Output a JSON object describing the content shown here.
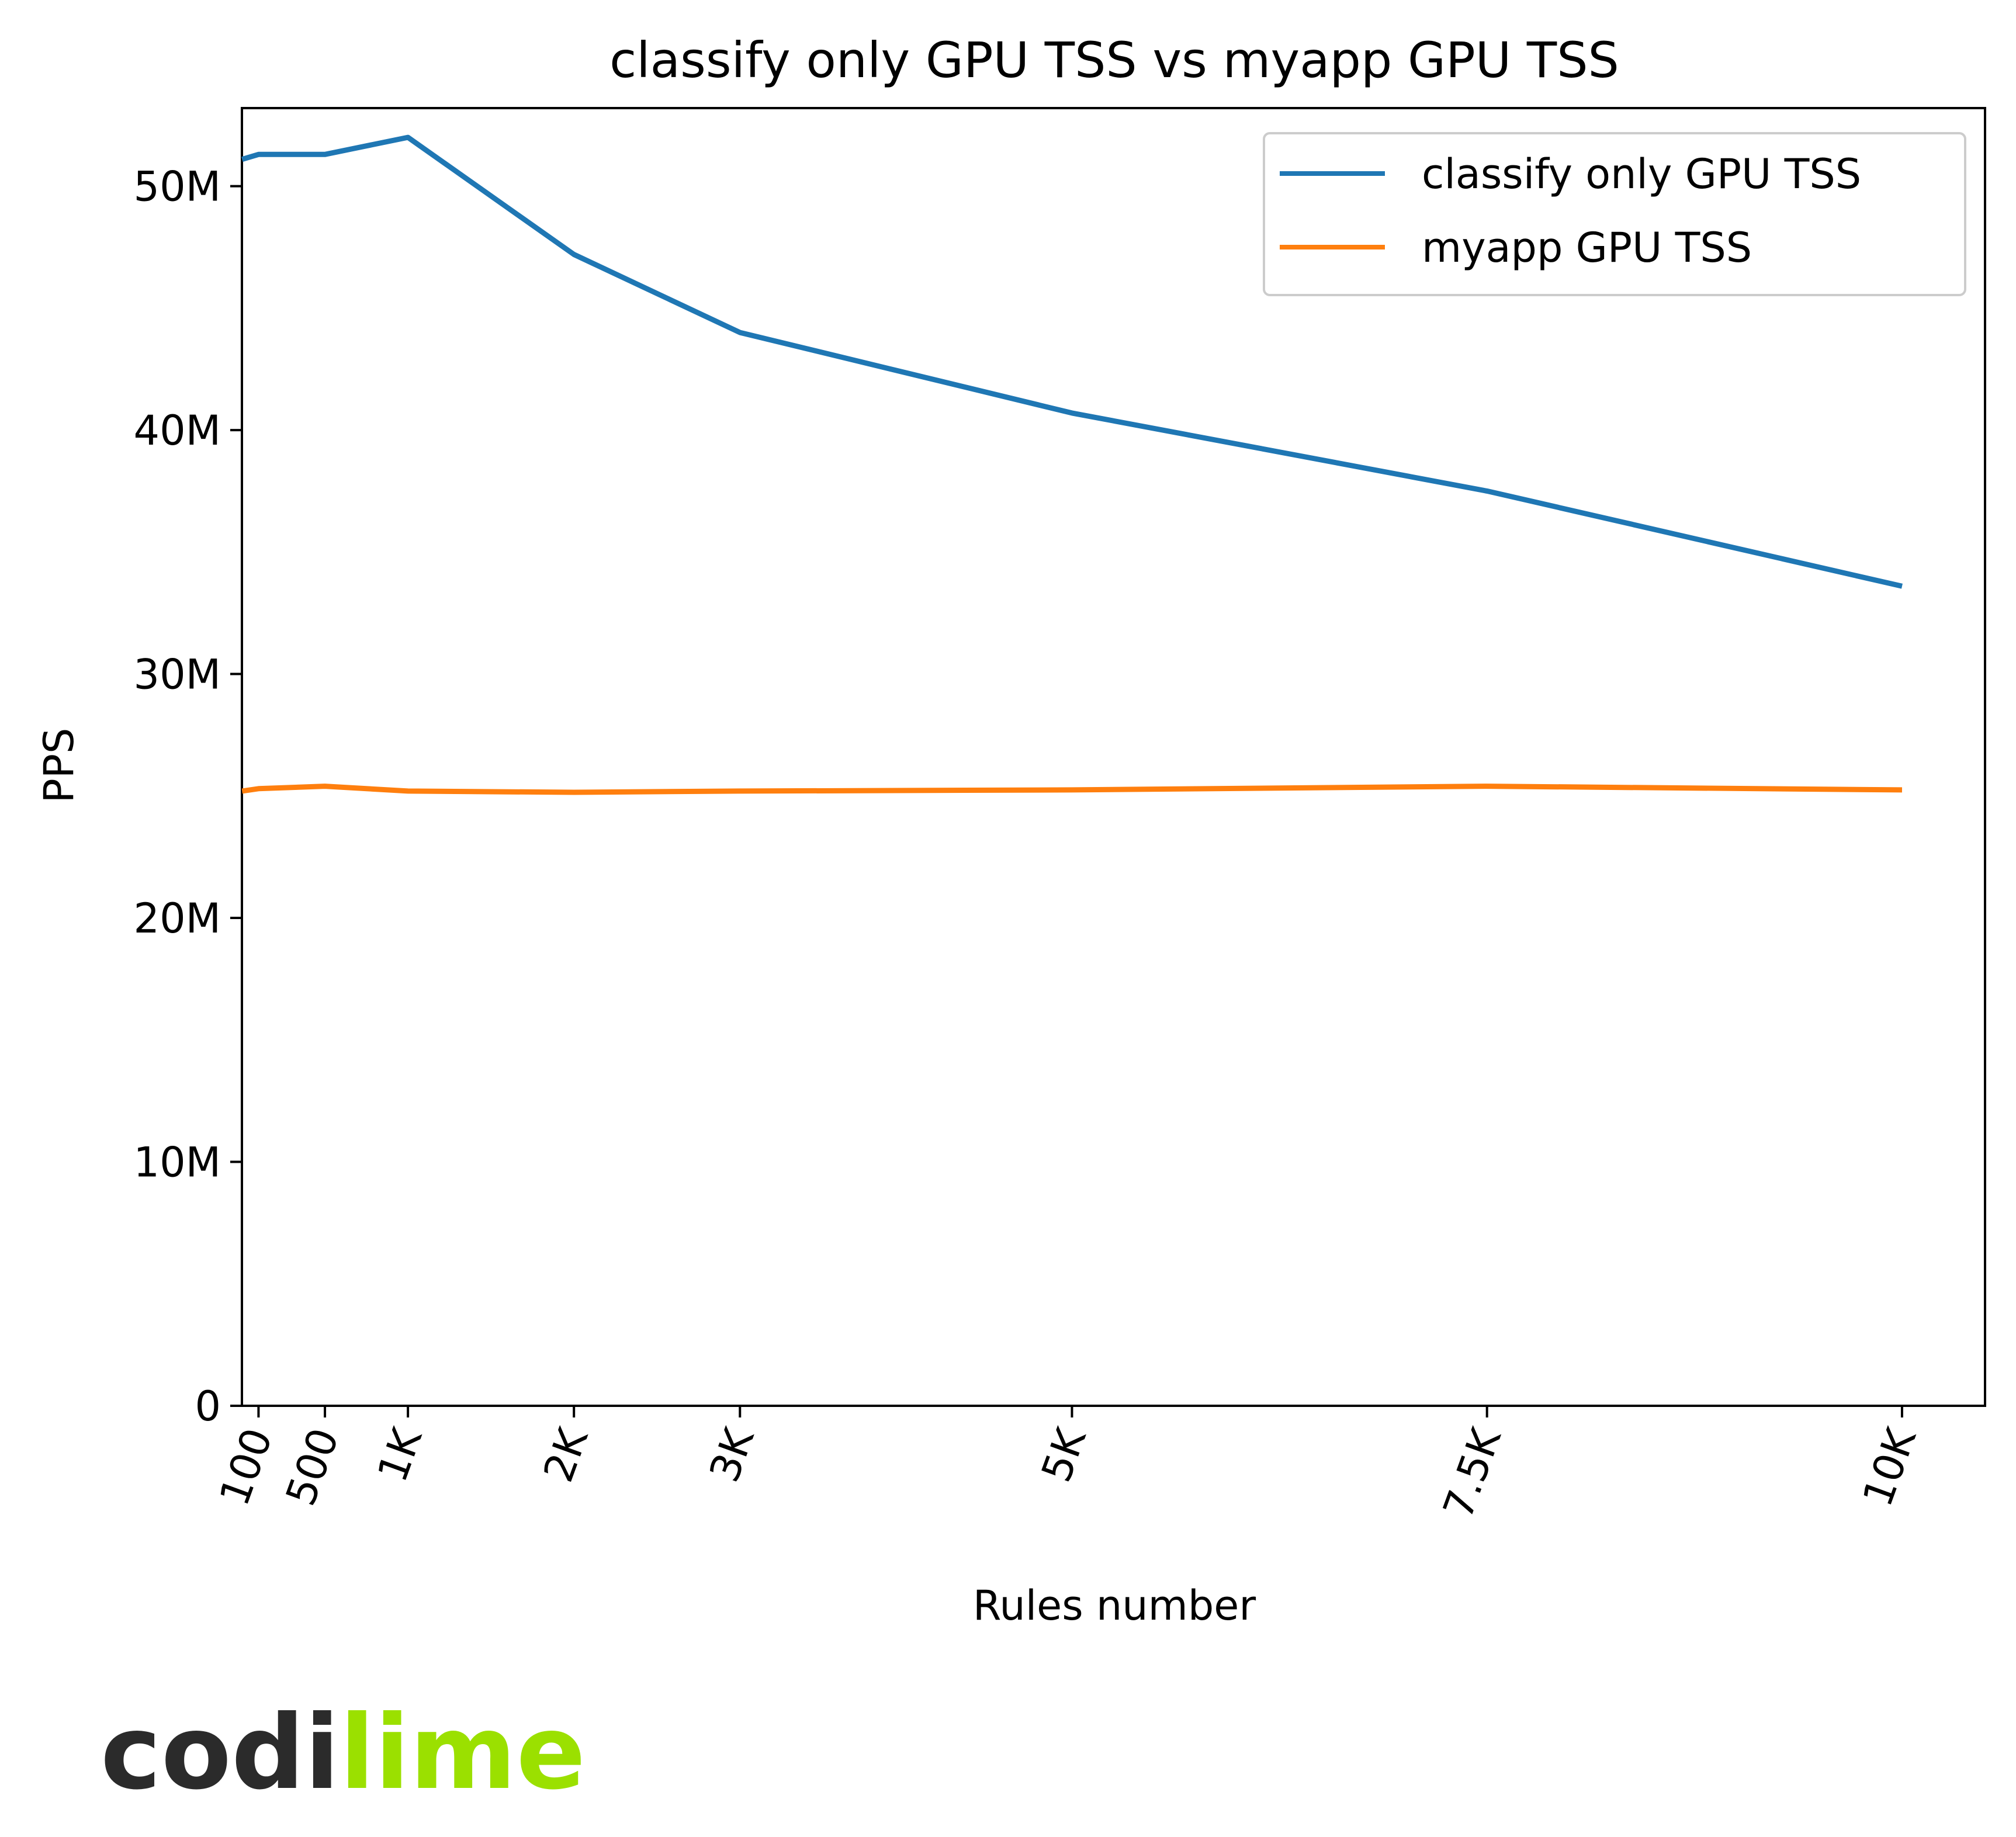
{
  "chart_data": {
    "type": "line",
    "title": "classify only GPU TSS vs myapp GPU TSS",
    "xlabel": "Rules number",
    "ylabel": "PPS",
    "x": [
      1,
      100,
      500,
      1000,
      2000,
      3000,
      5000,
      7500,
      10000
    ],
    "xlim": [
      0,
      10500
    ],
    "ylim": [
      0,
      53200000
    ],
    "x_ticks": [
      {
        "value": 100,
        "label": "100"
      },
      {
        "value": 500,
        "label": "500"
      },
      {
        "value": 1000,
        "label": "1K"
      },
      {
        "value": 2000,
        "label": "2K"
      },
      {
        "value": 3000,
        "label": "3K"
      },
      {
        "value": 5000,
        "label": "5K"
      },
      {
        "value": 7500,
        "label": "7.5K"
      },
      {
        "value": 10000,
        "label": "10K"
      }
    ],
    "y_ticks": [
      {
        "value": 0,
        "label": "0"
      },
      {
        "value": 10000000,
        "label": "10M"
      },
      {
        "value": 20000000,
        "label": "20M"
      },
      {
        "value": 30000000,
        "label": "30M"
      },
      {
        "value": 40000000,
        "label": "40M"
      },
      {
        "value": 50000000,
        "label": "50M"
      }
    ],
    "series": [
      {
        "name": "classify only GPU TSS",
        "color": "#1f77b4",
        "values": [
          51100000,
          51300000,
          51300000,
          52000000,
          47200000,
          44000000,
          40700000,
          37500000,
          33600000
        ]
      },
      {
        "name": "myapp GPU TSS",
        "color": "#ff7f0e",
        "values": [
          25200000,
          25300000,
          25400000,
          25200000,
          25150000,
          25200000,
          25250000,
          25400000,
          25250000
        ]
      }
    ],
    "grid": false,
    "legend_position": "upper right"
  },
  "logo": {
    "part1": "codi",
    "part2": "lime"
  }
}
